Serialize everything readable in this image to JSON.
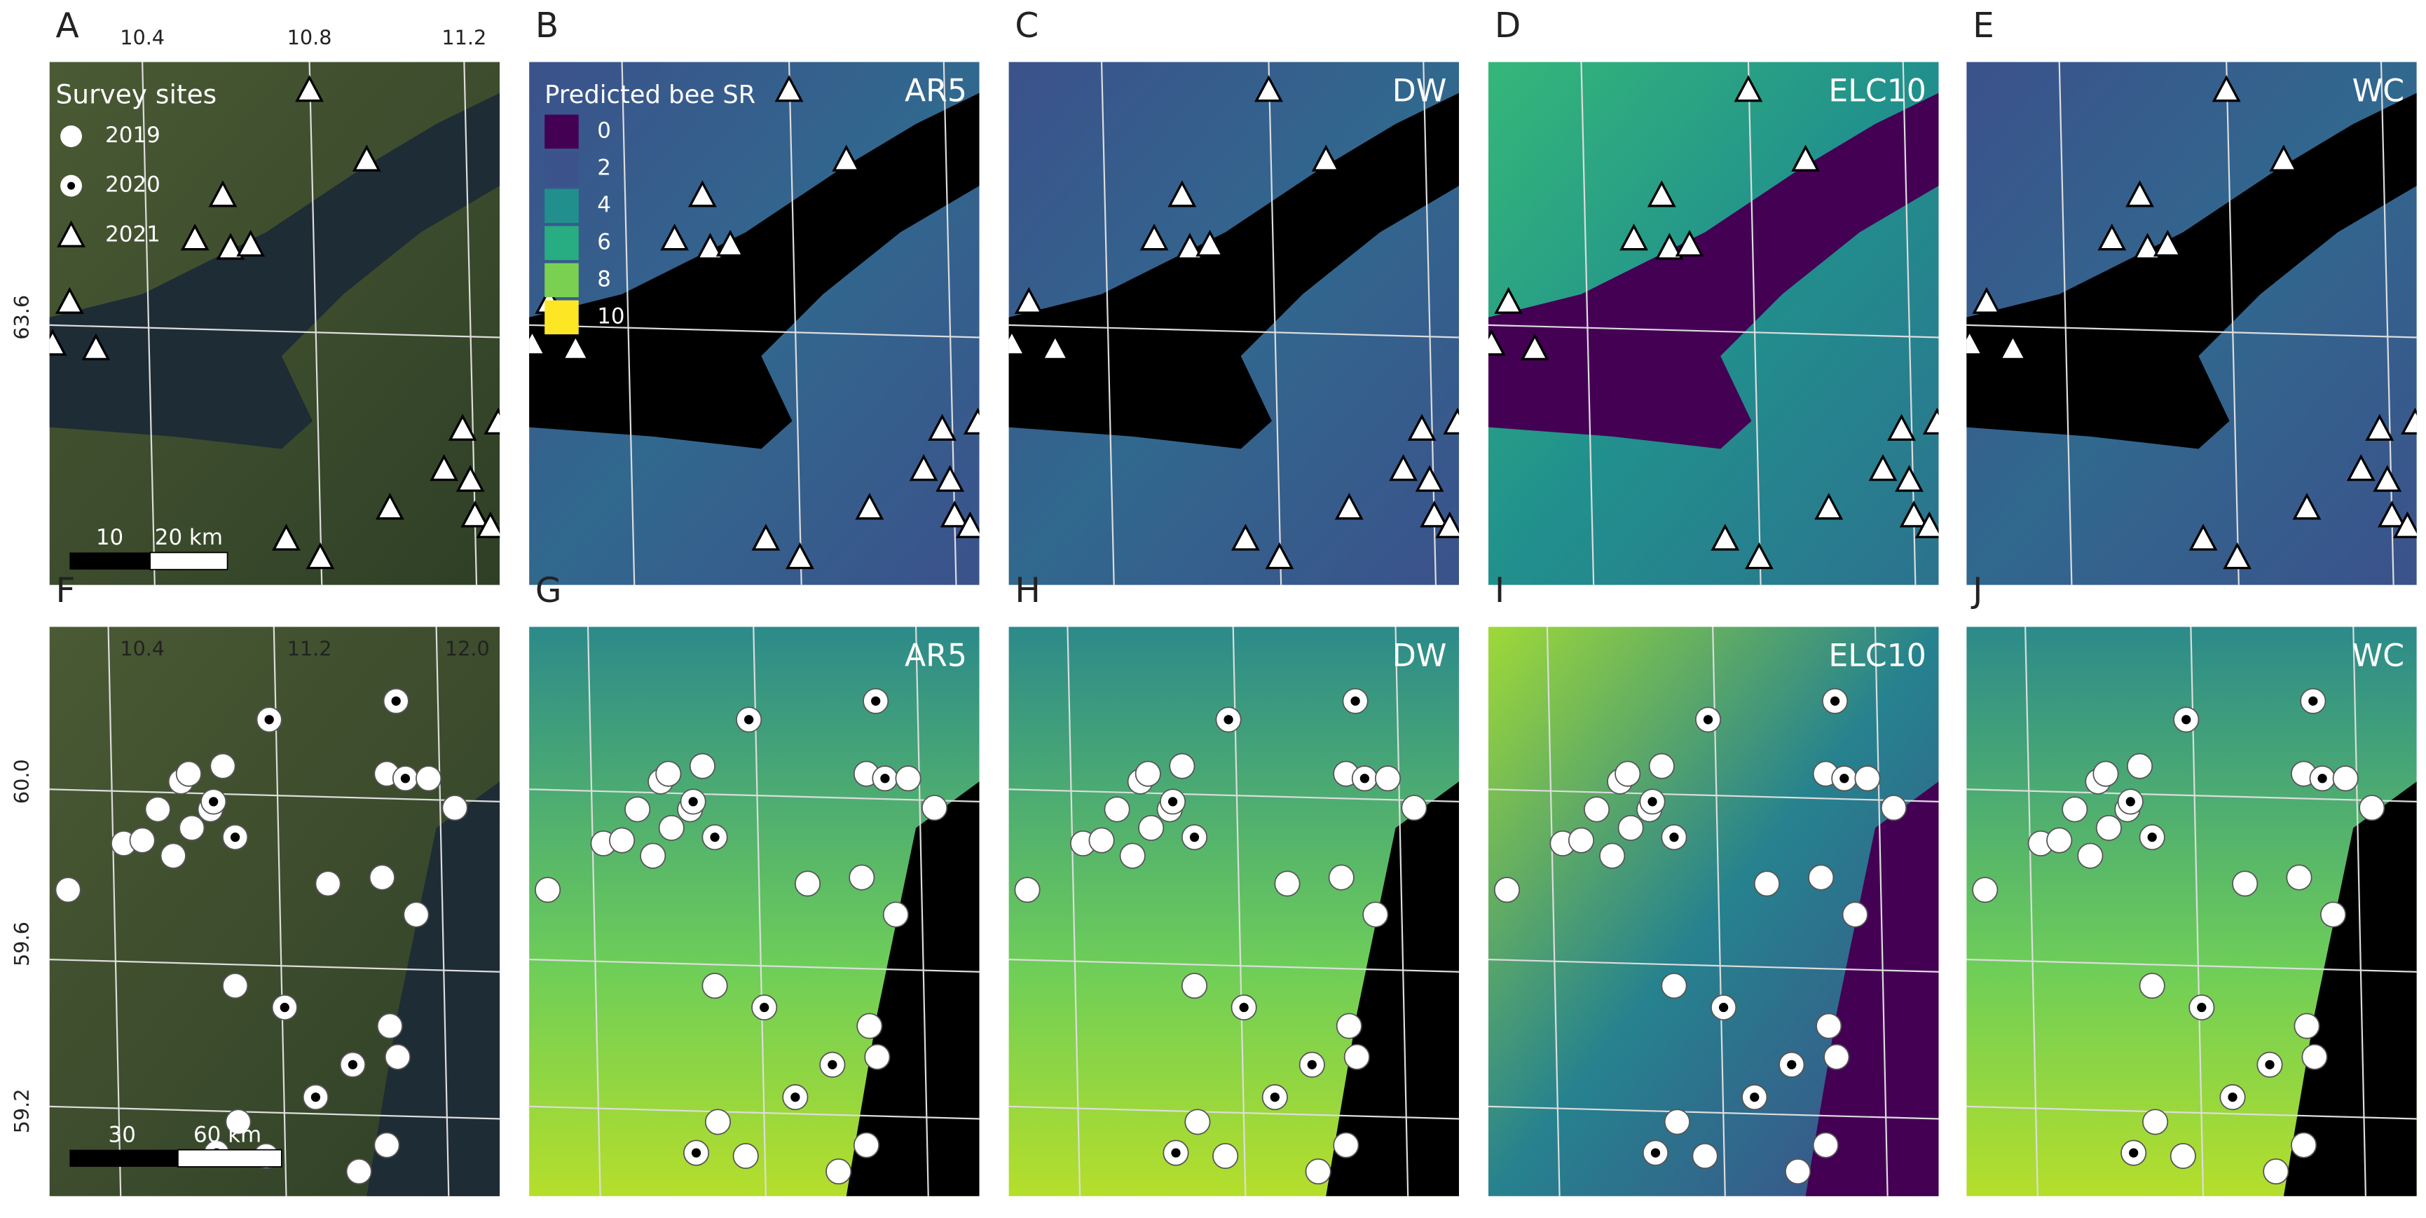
{
  "figure": {
    "top_row": {
      "panels": [
        {
          "letter": "A"
        },
        {
          "letter": "B",
          "name": "AR5"
        },
        {
          "letter": "C",
          "name": "DW"
        },
        {
          "letter": "D",
          "name": "ELC10"
        },
        {
          "letter": "E",
          "name": "WC"
        }
      ],
      "x_ticks": [
        "10.4",
        "10.8",
        "11.2"
      ],
      "y_ticks": [
        "63.6"
      ],
      "scale_bar": [
        "10",
        "20 km"
      ]
    },
    "bottom_row": {
      "panels": [
        {
          "letter": "F"
        },
        {
          "letter": "G",
          "name": "AR5"
        },
        {
          "letter": "H",
          "name": "DW"
        },
        {
          "letter": "I",
          "name": "ELC10"
        },
        {
          "letter": "J",
          "name": "WC"
        }
      ],
      "x_ticks": [
        "10.4",
        "11.2",
        "12.0"
      ],
      "y_ticks": [
        "60.0",
        "59.6",
        "59.2"
      ],
      "scale_bar": [
        "30",
        "60 km"
      ]
    },
    "legend": {
      "title": "Survey sites",
      "items": [
        "2019",
        "2020",
        "2021"
      ]
    },
    "colorbar": {
      "title": "Predicted bee SR",
      "ticks": [
        {
          "label": "0",
          "color": "#440154"
        },
        {
          "label": "2",
          "color": "#3b528b"
        },
        {
          "label": "4",
          "color": "#21908d"
        },
        {
          "label": "6",
          "color": "#27ad81"
        },
        {
          "label": "8",
          "color": "#7ad151"
        },
        {
          "label": "10",
          "color": "#fde725"
        }
      ]
    }
  }
}
